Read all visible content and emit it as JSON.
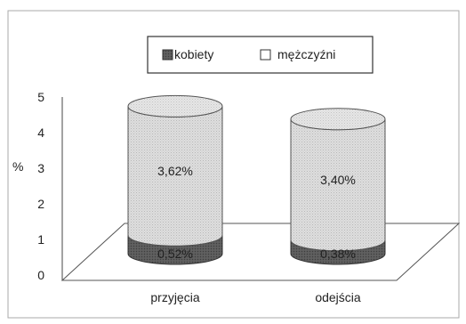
{
  "chart_data": {
    "type": "bar",
    "style": "3d-stacked-cylinder",
    "categories": [
      "przyjęcia",
      "odejścia"
    ],
    "series": [
      {
        "name": "kobiety",
        "values": [
          0.52,
          0.38
        ],
        "labels": [
          "0,52%",
          "0,38%"
        ],
        "color": "#555555"
      },
      {
        "name": "mężczyźni",
        "values": [
          3.62,
          3.4
        ],
        "labels": [
          "3,62%",
          "3,40%"
        ],
        "color": "#d6d6d6"
      }
    ],
    "ylabel": "%",
    "ylim": [
      0,
      5
    ],
    "yticks": [
      "0",
      "1",
      "2",
      "3",
      "4",
      "5"
    ],
    "legend": {
      "position": "top",
      "items": [
        "kobiety",
        "mężczyźni"
      ]
    },
    "grid": false
  }
}
